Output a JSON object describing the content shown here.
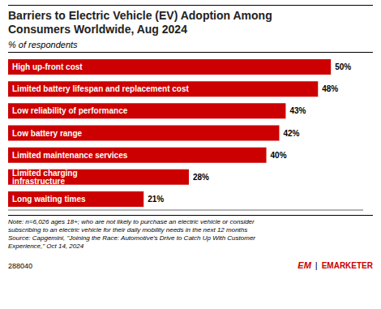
{
  "chart_data": {
    "type": "bar",
    "orientation": "horizontal",
    "title": "Barriers to Electric Vehicle (EV) Adoption Among\nConsumers Worldwide, Aug 2024",
    "subtitle": "% of respondents",
    "categories": [
      "High up-front cost",
      "Limited battery lifespan and replacement cost",
      "Low reliability of performance",
      "Low battery range",
      "Limited maintenance services",
      "Limited charging infrastructure",
      "Long waiting times"
    ],
    "values": [
      50,
      48,
      43,
      42,
      40,
      28,
      21
    ],
    "value_labels": [
      "50%",
      "48%",
      "43%",
      "42%",
      "40%",
      "28%",
      "21%"
    ],
    "color": "#CC0000",
    "xlim": [
      0,
      55
    ],
    "grid": false,
    "data_labels": true,
    "tick_labels": false,
    "annotations": [
      "Note: n=6,026 ages 18+; who are not likely to purchase an electric vehicle or consider\nsubscribing to an electric vehicle for their daily mobility needs in the next 12 months\nSource: Capgemini, \"Joining the Race: Automotive's Drive to Catch Up With Customer\nExperience,\" Oct 14, 2024",
      "288040",
      "EM",
      "|",
      "EMARKETER"
    ]
  }
}
